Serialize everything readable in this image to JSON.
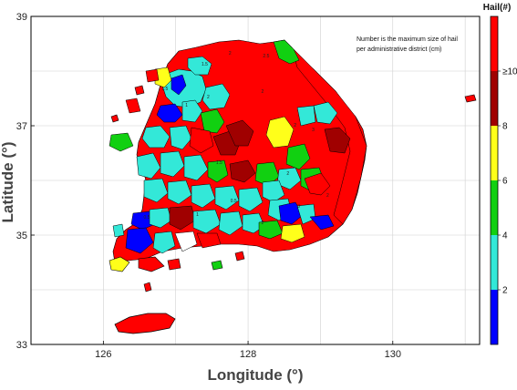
{
  "chart_data": {
    "type": "choropleth",
    "xlabel": "Longitude (°)",
    "ylabel": "Latitude (°)",
    "xlim": [
      125.0,
      131.2
    ],
    "ylim": [
      33,
      39
    ],
    "x_ticks": [
      "126",
      "128",
      "130"
    ],
    "y_ticks": [
      "33",
      "35",
      "37",
      "39"
    ],
    "grid": true,
    "note_lines": [
      "Number is the maximum size of hail",
      "per administrative district (cm)"
    ],
    "colorbar": {
      "title": "Hail(#)",
      "range": [
        0,
        12
      ],
      "labels": [
        "2",
        "4",
        "6",
        "8",
        "≥10"
      ],
      "bins": [
        {
          "from": 0,
          "to": 2,
          "color": "#0000ff"
        },
        {
          "from": 2,
          "to": 4,
          "color": "#33e8d8"
        },
        {
          "from": 4,
          "to": 6,
          "color": "#11d011"
        },
        {
          "from": 6,
          "to": 8,
          "color": "#ffff1a"
        },
        {
          "from": 8,
          "to": 10,
          "color": "#a00000"
        },
        {
          "from": 10,
          "to": 12,
          "color": "#ff0000"
        }
      ]
    },
    "district_labels": [
      {
        "lon": 127.4,
        "lat": 38.1,
        "text": "1.5"
      },
      {
        "lon": 127.75,
        "lat": 38.3,
        "text": "2"
      },
      {
        "lon": 128.25,
        "lat": 38.25,
        "text": "2.5"
      },
      {
        "lon": 126.85,
        "lat": 37.65,
        "text": "1.5"
      },
      {
        "lon": 127.15,
        "lat": 37.35,
        "text": "1"
      },
      {
        "lon": 127.45,
        "lat": 37.5,
        "text": "2"
      },
      {
        "lon": 128.2,
        "lat": 37.6,
        "text": "2"
      },
      {
        "lon": 128.65,
        "lat": 36.98,
        "text": "2"
      },
      {
        "lon": 128.9,
        "lat": 36.9,
        "text": "3"
      },
      {
        "lon": 128.55,
        "lat": 36.1,
        "text": "2"
      },
      {
        "lon": 127.6,
        "lat": 36.3,
        "text": "1.5"
      },
      {
        "lon": 127.3,
        "lat": 35.35,
        "text": "1"
      },
      {
        "lon": 126.6,
        "lat": 35.3,
        "text": "0.5"
      },
      {
        "lon": 127.8,
        "lat": 35.6,
        "text": "0.5"
      },
      {
        "lon": 128.2,
        "lat": 35.2,
        "text": "2"
      },
      {
        "lon": 128.7,
        "lat": 35.5,
        "text": "3"
      },
      {
        "lon": 129.1,
        "lat": 35.7,
        "text": "2"
      }
    ]
  }
}
